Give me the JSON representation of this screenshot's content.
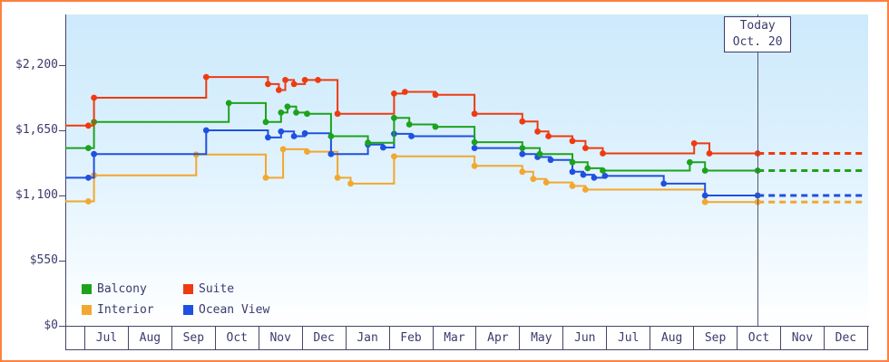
{
  "frame": {
    "border_color": "#ff8040"
  },
  "today": {
    "line1": "Today",
    "line2": "Oct. 20"
  },
  "y_axis": {
    "ticks": [
      {
        "label": "$0",
        "value": 0
      },
      {
        "label": "$550",
        "value": 550
      },
      {
        "label": "$1,100",
        "value": 1100
      },
      {
        "label": "$1,650",
        "value": 1650
      },
      {
        "label": "$2,200",
        "value": 2200
      }
    ]
  },
  "x_axis": {
    "months": [
      "Jul",
      "Aug",
      "Sep",
      "Oct",
      "Nov",
      "Dec",
      "Jan",
      "Feb",
      "Mar",
      "Apr",
      "May",
      "Jun",
      "Jul",
      "Aug",
      "Sep",
      "Oct",
      "Nov",
      "Dec"
    ]
  },
  "legend": {
    "items": [
      {
        "label": "Balcony",
        "color": "#1ca31c"
      },
      {
        "label": "Suite",
        "color": "#ee3b11"
      },
      {
        "label": "Interior",
        "color": "#f2a72e"
      },
      {
        "label": "Ocean View",
        "color": "#2050e0"
      }
    ]
  },
  "chart_data": {
    "type": "line",
    "subtype": "step-price-history",
    "x_unit": "month index, Jul=0 through Dec=17",
    "y_unit": "USD per person",
    "ylim": [
      0,
      2200
    ],
    "grid": false,
    "legend_position": "bottom-left",
    "today_x": 15.46,
    "today_label": "Today Oct. 20",
    "series": [
      {
        "name": "Interior",
        "color": "#f2a72e",
        "forecast": 1045,
        "points": [
          [
            0.07,
            1050
          ],
          [
            0.2,
            1270
          ],
          [
            2.55,
            1445
          ],
          [
            4.15,
            1250
          ],
          [
            4.55,
            1490
          ],
          [
            5.1,
            1470
          ],
          [
            5.8,
            1250
          ],
          [
            6.1,
            1200
          ],
          [
            7.1,
            1430
          ],
          [
            8.95,
            1350
          ],
          [
            10.05,
            1300
          ],
          [
            10.3,
            1240
          ],
          [
            10.6,
            1210
          ],
          [
            11.2,
            1180
          ],
          [
            11.5,
            1150
          ],
          [
            14.25,
            1045
          ]
        ]
      },
      {
        "name": "Ocean View",
        "color": "#2050e0",
        "forecast": 1100,
        "points": [
          [
            0.07,
            1250
          ],
          [
            0.2,
            1450
          ],
          [
            2.78,
            1650
          ],
          [
            4.2,
            1590
          ],
          [
            4.5,
            1640
          ],
          [
            4.8,
            1600
          ],
          [
            5.05,
            1625
          ],
          [
            5.65,
            1450
          ],
          [
            6.5,
            1530
          ],
          [
            6.85,
            1505
          ],
          [
            7.1,
            1620
          ],
          [
            7.5,
            1600
          ],
          [
            8.95,
            1500
          ],
          [
            10.05,
            1450
          ],
          [
            10.4,
            1425
          ],
          [
            10.7,
            1400
          ],
          [
            11.2,
            1300
          ],
          [
            11.45,
            1275
          ],
          [
            11.7,
            1250
          ],
          [
            11.95,
            1265
          ],
          [
            13.3,
            1200
          ],
          [
            14.25,
            1100
          ]
        ]
      },
      {
        "name": "Balcony",
        "color": "#1ca31c",
        "forecast": 1310,
        "points": [
          [
            0.07,
            1500
          ],
          [
            0.2,
            1720
          ],
          [
            3.3,
            1880
          ],
          [
            4.15,
            1720
          ],
          [
            4.5,
            1800
          ],
          [
            4.65,
            1850
          ],
          [
            4.85,
            1800
          ],
          [
            5.1,
            1790
          ],
          [
            5.65,
            1600
          ],
          [
            6.5,
            1545
          ],
          [
            7.1,
            1755
          ],
          [
            7.45,
            1700
          ],
          [
            8.05,
            1680
          ],
          [
            8.95,
            1550
          ],
          [
            10.05,
            1500
          ],
          [
            10.45,
            1450
          ],
          [
            11.2,
            1380
          ],
          [
            11.55,
            1330
          ],
          [
            11.9,
            1310
          ],
          [
            13.9,
            1380
          ],
          [
            14.25,
            1310
          ]
        ]
      },
      {
        "name": "Suite",
        "color": "#ee3b11",
        "forecast": 1455,
        "points": [
          [
            0.07,
            1690
          ],
          [
            0.2,
            1925
          ],
          [
            2.78,
            2100
          ],
          [
            4.2,
            2040
          ],
          [
            4.45,
            1990
          ],
          [
            4.6,
            2075
          ],
          [
            4.8,
            2040
          ],
          [
            5.05,
            2075
          ],
          [
            5.35,
            2075
          ],
          [
            5.8,
            1790
          ],
          [
            7.1,
            1960
          ],
          [
            7.35,
            1975
          ],
          [
            8.05,
            1950
          ],
          [
            8.95,
            1790
          ],
          [
            10.05,
            1725
          ],
          [
            10.4,
            1640
          ],
          [
            10.65,
            1600
          ],
          [
            11.2,
            1560
          ],
          [
            11.5,
            1500
          ],
          [
            11.9,
            1455
          ],
          [
            14.0,
            1540
          ],
          [
            14.35,
            1455
          ]
        ]
      }
    ]
  }
}
